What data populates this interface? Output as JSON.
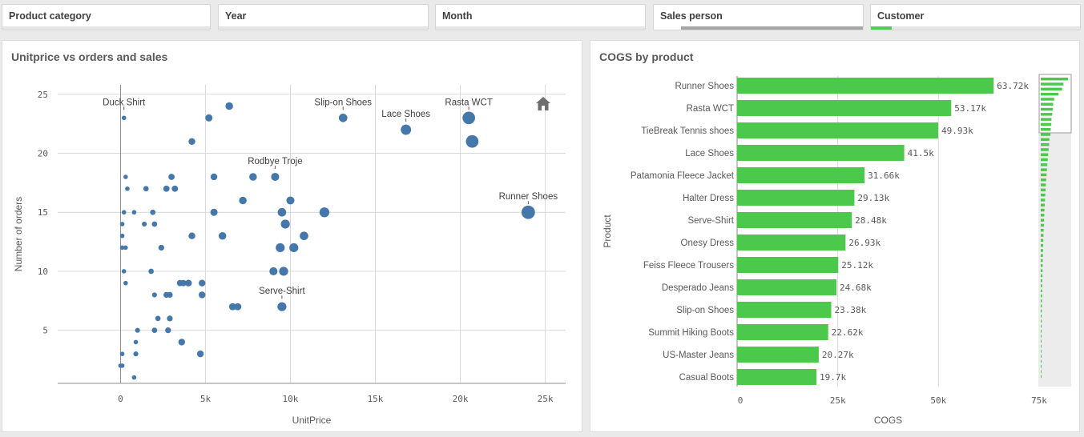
{
  "filters": [
    {
      "label": "Product category",
      "fill_fraction": 0,
      "fill_color": ""
    },
    {
      "label": "Year",
      "fill_fraction": 0,
      "fill_color": ""
    },
    {
      "label": "Month",
      "fill_fraction": 0,
      "fill_color": ""
    },
    {
      "label": "Sales person",
      "fill_fraction": 1,
      "fill_color": "#a6a6a6"
    },
    {
      "label": "Customer",
      "fill_fraction": 0.1,
      "fill_color": "#52cc52"
    }
  ],
  "panels": {
    "scatter_title": "Unitprice vs orders and sales",
    "bar_title": "COGS by product"
  },
  "chart_data": [
    {
      "type": "scatter",
      "title": "Unitprice vs orders and sales",
      "xlabel": "UnitPrice",
      "ylabel": "Number of orders",
      "xlim": [
        -3700,
        26200
      ],
      "ylim": [
        0.5,
        25.8
      ],
      "xticks": [
        0,
        5000,
        10000,
        15000,
        20000,
        25000
      ],
      "xtick_labels": [
        "0",
        "5k",
        "10k",
        "15k",
        "20k",
        "25k"
      ],
      "yticks": [
        5,
        10,
        15,
        20,
        25
      ],
      "ytick_labels": [
        "5",
        "10",
        "15",
        "20",
        "25"
      ],
      "grid": true,
      "color": "#4477aa",
      "home_icon": "home-icon",
      "points": [
        {
          "x": 24000,
          "y": 15,
          "s": 3.0
        },
        {
          "x": 20500,
          "y": 23,
          "s": 2.8
        },
        {
          "x": 20700,
          "y": 21,
          "s": 2.8
        },
        {
          "x": 16800,
          "y": 22,
          "s": 2.3
        },
        {
          "x": 13100,
          "y": 23,
          "s": 1.9
        },
        {
          "x": 12000,
          "y": 15,
          "s": 2.2
        },
        {
          "x": 10800,
          "y": 13,
          "s": 1.9
        },
        {
          "x": 10200,
          "y": 12,
          "s": 2.0
        },
        {
          "x": 9700,
          "y": 14,
          "s": 2.0
        },
        {
          "x": 9600,
          "y": 10,
          "s": 2.0
        },
        {
          "x": 9500,
          "y": 15,
          "s": 1.9
        },
        {
          "x": 9400,
          "y": 12,
          "s": 2.0
        },
        {
          "x": 9500,
          "y": 7,
          "s": 2.0
        },
        {
          "x": 9000,
          "y": 10,
          "s": 1.8
        },
        {
          "x": 10000,
          "y": 16,
          "s": 1.8
        },
        {
          "x": 9100,
          "y": 18,
          "s": 1.8
        },
        {
          "x": 7800,
          "y": 18,
          "s": 1.7
        },
        {
          "x": 7200,
          "y": 16,
          "s": 1.7
        },
        {
          "x": 6900,
          "y": 7,
          "s": 1.6
        },
        {
          "x": 6600,
          "y": 7,
          "s": 1.6
        },
        {
          "x": 6400,
          "y": 24,
          "s": 1.7
        },
        {
          "x": 6000,
          "y": 13,
          "s": 1.7
        },
        {
          "x": 5500,
          "y": 18,
          "s": 1.5
        },
        {
          "x": 5500,
          "y": 15,
          "s": 1.6
        },
        {
          "x": 5200,
          "y": 23,
          "s": 1.6
        },
        {
          "x": 4800,
          "y": 9,
          "s": 1.5
        },
        {
          "x": 4800,
          "y": 8,
          "s": 1.5
        },
        {
          "x": 4700,
          "y": 3,
          "s": 1.5
        },
        {
          "x": 4200,
          "y": 21,
          "s": 1.5
        },
        {
          "x": 4200,
          "y": 13,
          "s": 1.5
        },
        {
          "x": 4000,
          "y": 9,
          "s": 1.5
        },
        {
          "x": 3700,
          "y": 9,
          "s": 1.4
        },
        {
          "x": 3600,
          "y": 4,
          "s": 1.5
        },
        {
          "x": 3500,
          "y": 9,
          "s": 1.4
        },
        {
          "x": 3200,
          "y": 17,
          "s": 1.4
        },
        {
          "x": 3000,
          "y": 18,
          "s": 1.4
        },
        {
          "x": 2900,
          "y": 6,
          "s": 1.3
        },
        {
          "x": 2900,
          "y": 8,
          "s": 1.3
        },
        {
          "x": 2800,
          "y": 5,
          "s": 1.3
        },
        {
          "x": 2700,
          "y": 17,
          "s": 1.4
        },
        {
          "x": 2700,
          "y": 8,
          "s": 1.3
        },
        {
          "x": 2400,
          "y": 12,
          "s": 1.3
        },
        {
          "x": 2200,
          "y": 6,
          "s": 1.2
        },
        {
          "x": 2000,
          "y": 5,
          "s": 1.2
        },
        {
          "x": 2000,
          "y": 14,
          "s": 1.2
        },
        {
          "x": 1900,
          "y": 15,
          "s": 1.2
        },
        {
          "x": 2000,
          "y": 8,
          "s": 1.1
        },
        {
          "x": 1800,
          "y": 10,
          "s": 1.2
        },
        {
          "x": 1500,
          "y": 17,
          "s": 1.2
        },
        {
          "x": 1400,
          "y": 14,
          "s": 1.1
        },
        {
          "x": 1000,
          "y": 5,
          "s": 1.1
        },
        {
          "x": 900,
          "y": 4,
          "s": 1.0
        },
        {
          "x": 800,
          "y": 15,
          "s": 1.0
        },
        {
          "x": 900,
          "y": 3,
          "s": 1.1
        },
        {
          "x": 800,
          "y": 1,
          "s": 1.0
        },
        {
          "x": 400,
          "y": 17,
          "s": 1.0
        },
        {
          "x": 300,
          "y": 18,
          "s": 1.0
        },
        {
          "x": 300,
          "y": 12,
          "s": 1.0
        },
        {
          "x": 300,
          "y": 9,
          "s": 1.0
        },
        {
          "x": 200,
          "y": 23,
          "s": 1.0
        },
        {
          "x": 200,
          "y": 15,
          "s": 1.0
        },
        {
          "x": 100,
          "y": 14,
          "s": 1.0
        },
        {
          "x": 100,
          "y": 13,
          "s": 1.0
        },
        {
          "x": 200,
          "y": 10,
          "s": 1.0
        },
        {
          "x": 100,
          "y": 12,
          "s": 1.0
        },
        {
          "x": 100,
          "y": 3,
          "s": 1.0
        },
        {
          "x": 100,
          "y": 2,
          "s": 1.0
        },
        {
          "x": 0,
          "y": 2,
          "s": 1.0
        }
      ],
      "annotations": [
        {
          "text": "Duck Shirt",
          "x": 200,
          "y": 23
        },
        {
          "text": "Slip-on Shoes",
          "x": 13100,
          "y": 23
        },
        {
          "text": "Lace Shoes",
          "x": 16800,
          "y": 22
        },
        {
          "text": "Rasta WCT",
          "x": 20500,
          "y": 23
        },
        {
          "text": "Rodbye Troje",
          "x": 9100,
          "y": 18
        },
        {
          "text": "Runner Shoes",
          "x": 24000,
          "y": 15
        },
        {
          "text": "Serve-Shirt",
          "x": 9500,
          "y": 7
        }
      ]
    },
    {
      "type": "bar",
      "orientation": "horizontal",
      "title": "COGS by product",
      "xlabel": "COGS",
      "ylabel": "Product",
      "xlim": [
        0,
        75000
      ],
      "xticks": [
        0,
        25000,
        50000,
        75000
      ],
      "xtick_labels": [
        "0",
        "25k",
        "50k",
        "75k"
      ],
      "color": "#4cc94c",
      "categories": [
        "Runner Shoes",
        "Rasta WCT",
        "TieBreak Tennis shoes",
        "Lace Shoes",
        "Patamonia Fleece Jacket",
        "Halter Dress",
        "Serve-Shirt",
        "Onesy Dress",
        "Feiss Fleece Trousers",
        "Desperado Jeans",
        "Slip-on Shoes",
        "Summit Hiking Boots",
        "US-Master Jeans",
        "Casual Boots"
      ],
      "values": [
        63720,
        53170,
        49930,
        41500,
        31660,
        29130,
        28480,
        26930,
        25120,
        24680,
        23380,
        22620,
        20270,
        19700
      ],
      "value_labels": [
        "63.72k",
        "53.17k",
        "49.93k",
        "41.5k",
        "31.66k",
        "29.13k",
        "28.48k",
        "26.93k",
        "25.12k",
        "24.68k",
        "23.38k",
        "22.62k",
        "20.27k",
        "19.7k"
      ]
    }
  ]
}
